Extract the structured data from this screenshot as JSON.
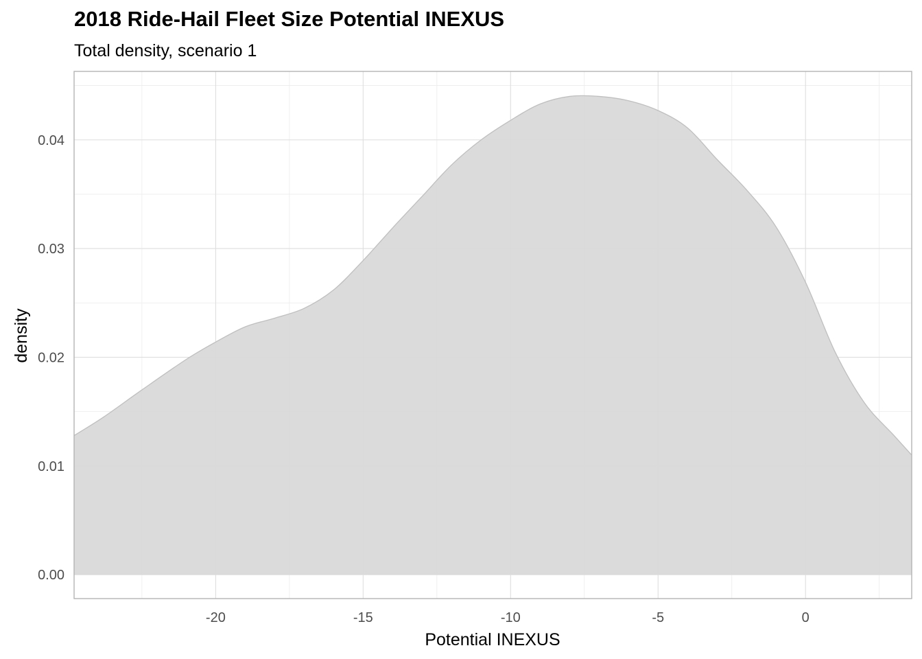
{
  "chart_data": {
    "type": "area",
    "title": "2018 Ride-Hail Fleet Size Potential INEXUS",
    "subtitle": "Total density, scenario 1",
    "xlabel": "Potential INEXUS",
    "ylabel": "density",
    "xlim": [
      -24.8,
      3.6
    ],
    "ylim": [
      -0.0022,
      0.0463
    ],
    "x_ticks": [
      -20,
      -15,
      -10,
      -5,
      0
    ],
    "x_tick_labels": [
      "-20",
      "-15",
      "-10",
      "-5",
      "0"
    ],
    "y_ticks": [
      0.0,
      0.01,
      0.02,
      0.03,
      0.04
    ],
    "y_tick_labels": [
      "0.00",
      "0.01",
      "0.02",
      "0.03",
      "0.04"
    ],
    "grid": true,
    "legend": "none",
    "fill_color": "#d9d9d9",
    "line_color": "#bfbfbf",
    "series": [
      {
        "x": [
          -24.8,
          -23.8,
          -22.5,
          -21.0,
          -20.0,
          -19.0,
          -18.0,
          -17.0,
          -16.0,
          -15.0,
          -14.0,
          -13.0,
          -12.0,
          -11.0,
          -10.0,
          -9.0,
          -8.0,
          -7.0,
          -6.0,
          -5.0,
          -4.0,
          -3.0,
          -2.0,
          -1.0,
          0.0,
          1.0,
          2.0,
          3.0,
          3.6
        ],
        "y": [
          0.0128,
          0.0145,
          0.017,
          0.0198,
          0.0214,
          0.0228,
          0.0236,
          0.0245,
          0.0262,
          0.0289,
          0.0319,
          0.0348,
          0.0377,
          0.04,
          0.0418,
          0.0433,
          0.044,
          0.044,
          0.0436,
          0.0427,
          0.0411,
          0.0382,
          0.0354,
          0.032,
          0.0269,
          0.0205,
          0.0158,
          0.0128,
          0.011
        ]
      }
    ]
  }
}
